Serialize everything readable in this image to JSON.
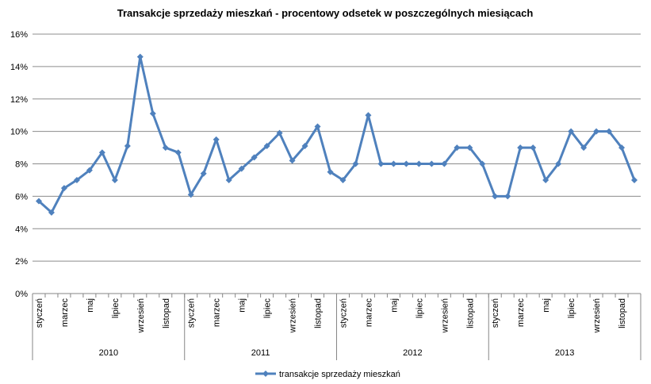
{
  "chart_data": {
    "type": "line",
    "title": "Transakcje sprzedaży mieszkań - procentowy odsetek w poszczególnych miesiącach",
    "xlabel": "",
    "ylabel": "",
    "ylim": [
      0,
      16
    ],
    "y_ticks": [
      "0%",
      "2%",
      "4%",
      "6%",
      "8%",
      "10%",
      "12%",
      "14%",
      "16%"
    ],
    "grid": true,
    "legend_position": "bottom",
    "line_color": "#4F81BD",
    "years": [
      "2010",
      "2011",
      "2012",
      "2013"
    ],
    "month_labels": [
      "styczeń",
      "marzec",
      "maj",
      "lipiec",
      "wrzesień",
      "listopad"
    ],
    "series": [
      {
        "name": "transakcje sprzedaży mieszkań",
        "values": [
          5.7,
          5.0,
          6.5,
          7.0,
          7.6,
          8.7,
          7.0,
          9.1,
          14.6,
          11.1,
          9.0,
          8.7,
          6.1,
          7.4,
          9.5,
          7.0,
          7.7,
          8.4,
          9.1,
          9.9,
          8.2,
          9.1,
          10.3,
          7.5,
          7.0,
          8.0,
          11.0,
          8.0,
          8.0,
          8.0,
          8.0,
          8.0,
          8.0,
          9.0,
          9.0,
          8.0,
          6.0,
          6.0,
          9.0,
          9.0,
          7.0,
          8.0,
          10.0,
          9.0,
          10.0,
          10.0,
          9.0,
          7.0
        ]
      }
    ]
  }
}
